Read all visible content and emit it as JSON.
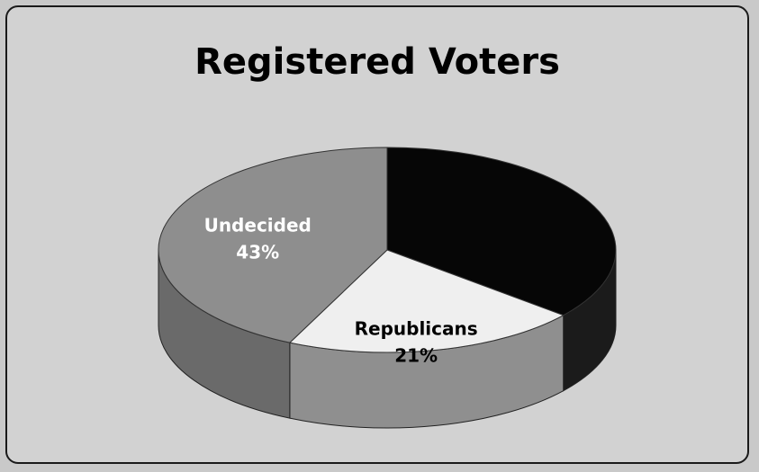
{
  "chart_data": {
    "type": "pie",
    "title": "Registered Voters",
    "slices": [
      {
        "label": "",
        "value": 36,
        "value_label": "",
        "color": "#060606",
        "side_color": "#1b1b1b",
        "label_color": "#ffffff"
      },
      {
        "label": "Republicans",
        "value": 21,
        "value_label": "21%",
        "color": "#efefef",
        "side_color": "#8f8f8f",
        "label_color": "#000000"
      },
      {
        "label": "Undecided",
        "value": 43,
        "value_label": "43%",
        "color": "#8e8e8e",
        "side_color": "#6a6a6a",
        "label_color": "#ffffff"
      }
    ],
    "three_d": true
  }
}
